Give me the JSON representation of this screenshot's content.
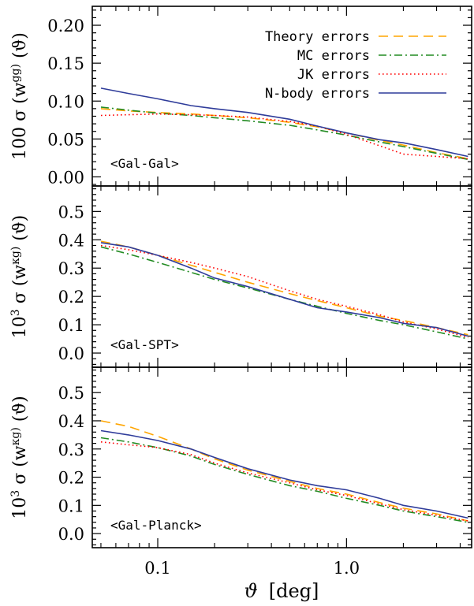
{
  "figure": {
    "xlabel_symbol": "ϑ",
    "xlabel_unit": "[deg]",
    "xlim": [
      0.045,
      4.6
    ],
    "xscale": "log",
    "xticks": [
      {
        "value": 0.1,
        "label": "0.1"
      },
      {
        "value": 1.0,
        "label": "1.0"
      }
    ]
  },
  "legend": {
    "entries": [
      {
        "label": "Theory errors",
        "color": "#FFA500",
        "dash": "dashed"
      },
      {
        "label": "MC errors",
        "color": "#228B22",
        "dash": "dashdot"
      },
      {
        "label": "JK errors",
        "color": "#FF0000",
        "dash": "dotted"
      },
      {
        "label": "N-body errors",
        "color": "#2F3C9A",
        "dash": "solid"
      }
    ]
  },
  "chart_data": [
    {
      "type": "line",
      "panel": "top",
      "annotation": "<Gal-Gal>",
      "ylabel": "100 σ (w^gg) (ϑ)",
      "ylim": [
        -0.012,
        0.225
      ],
      "yscale": "linear",
      "yticks": [
        {
          "value": 0.0,
          "label": "0.00"
        },
        {
          "value": 0.05,
          "label": "0.05"
        },
        {
          "value": 0.1,
          "label": "0.10"
        },
        {
          "value": 0.15,
          "label": "0.15"
        },
        {
          "value": 0.2,
          "label": "0.20"
        }
      ],
      "series": [
        {
          "name": "Theory errors",
          "x": [
            0.05,
            0.07,
            0.1,
            0.15,
            0.2,
            0.3,
            0.5,
            0.7,
            1.0,
            1.5,
            2.0,
            3.0,
            4.4
          ],
          "y": [
            0.09,
            0.087,
            0.085,
            0.083,
            0.081,
            0.078,
            0.072,
            0.066,
            0.058,
            0.048,
            0.042,
            0.032,
            0.024
          ]
        },
        {
          "name": "MC errors",
          "x": [
            0.05,
            0.07,
            0.1,
            0.15,
            0.2,
            0.3,
            0.5,
            0.7,
            1.0,
            1.5,
            2.0,
            3.0,
            4.4
          ],
          "y": [
            0.092,
            0.088,
            0.084,
            0.081,
            0.078,
            0.074,
            0.068,
            0.062,
            0.055,
            0.046,
            0.04,
            0.031,
            0.023
          ]
        },
        {
          "name": "JK errors",
          "x": [
            0.05,
            0.07,
            0.1,
            0.15,
            0.2,
            0.3,
            0.5,
            0.7,
            1.0,
            1.5,
            2.0,
            3.0,
            4.4
          ],
          "y": [
            0.081,
            0.082,
            0.083,
            0.082,
            0.081,
            0.079,
            0.073,
            0.067,
            0.056,
            0.041,
            0.03,
            0.027,
            0.024
          ]
        },
        {
          "name": "N-body errors",
          "x": [
            0.05,
            0.07,
            0.1,
            0.15,
            0.2,
            0.3,
            0.5,
            0.7,
            1.0,
            1.5,
            2.0,
            3.0,
            4.4
          ],
          "y": [
            0.117,
            0.11,
            0.103,
            0.094,
            0.09,
            0.085,
            0.076,
            0.067,
            0.058,
            0.049,
            0.045,
            0.036,
            0.027
          ]
        }
      ]
    },
    {
      "type": "line",
      "panel": "middle",
      "annotation": "<Gal-SPT>",
      "ylabel": "10^3 σ (w^κg) (ϑ)",
      "ylim": [
        -0.05,
        0.59
      ],
      "yscale": "linear",
      "yticks": [
        {
          "value": 0.0,
          "label": "0.0"
        },
        {
          "value": 0.1,
          "label": "0.1"
        },
        {
          "value": 0.2,
          "label": "0.2"
        },
        {
          "value": 0.3,
          "label": "0.3"
        },
        {
          "value": 0.4,
          "label": "0.4"
        },
        {
          "value": 0.5,
          "label": "0.5"
        }
      ],
      "series": [
        {
          "name": "Theory errors",
          "x": [
            0.05,
            0.07,
            0.1,
            0.15,
            0.2,
            0.3,
            0.5,
            0.7,
            1.0,
            1.5,
            2.0,
            3.0,
            4.4
          ],
          "y": [
            0.395,
            0.375,
            0.345,
            0.31,
            0.285,
            0.25,
            0.21,
            0.185,
            0.16,
            0.13,
            0.115,
            0.09,
            0.065
          ]
        },
        {
          "name": "MC errors",
          "x": [
            0.05,
            0.07,
            0.1,
            0.15,
            0.2,
            0.3,
            0.5,
            0.7,
            1.0,
            1.5,
            2.0,
            3.0,
            4.4
          ],
          "y": [
            0.375,
            0.35,
            0.32,
            0.285,
            0.26,
            0.23,
            0.19,
            0.165,
            0.14,
            0.115,
            0.1,
            0.075,
            0.05
          ]
        },
        {
          "name": "JK errors",
          "x": [
            0.05,
            0.07,
            0.1,
            0.15,
            0.2,
            0.3,
            0.5,
            0.7,
            1.0,
            1.5,
            2.0,
            3.0,
            4.4
          ],
          "y": [
            0.38,
            0.365,
            0.345,
            0.32,
            0.3,
            0.27,
            0.22,
            0.19,
            0.165,
            0.135,
            0.11,
            0.085,
            0.055
          ]
        },
        {
          "name": "N-body errors",
          "x": [
            0.05,
            0.07,
            0.1,
            0.15,
            0.2,
            0.3,
            0.5,
            0.7,
            1.0,
            1.5,
            2.0,
            3.0,
            4.4
          ],
          "y": [
            0.39,
            0.375,
            0.345,
            0.3,
            0.265,
            0.235,
            0.19,
            0.16,
            0.145,
            0.125,
            0.105,
            0.09,
            0.06
          ]
        }
      ]
    },
    {
      "type": "line",
      "panel": "bottom",
      "annotation": "<Gal-Planck>",
      "ylabel": "10^3 σ (w^κg) (ϑ)",
      "ylim": [
        -0.05,
        0.59
      ],
      "yscale": "linear",
      "yticks": [
        {
          "value": 0.0,
          "label": "0.0"
        },
        {
          "value": 0.1,
          "label": "0.1"
        },
        {
          "value": 0.2,
          "label": "0.2"
        },
        {
          "value": 0.3,
          "label": "0.3"
        },
        {
          "value": 0.4,
          "label": "0.4"
        },
        {
          "value": 0.5,
          "label": "0.5"
        }
      ],
      "series": [
        {
          "name": "Theory errors",
          "x": [
            0.05,
            0.07,
            0.1,
            0.15,
            0.2,
            0.3,
            0.5,
            0.7,
            1.0,
            1.5,
            2.0,
            3.0,
            4.4
          ],
          "y": [
            0.4,
            0.38,
            0.345,
            0.3,
            0.265,
            0.225,
            0.185,
            0.16,
            0.14,
            0.11,
            0.09,
            0.07,
            0.045
          ]
        },
        {
          "name": "MC errors",
          "x": [
            0.05,
            0.07,
            0.1,
            0.15,
            0.2,
            0.3,
            0.5,
            0.7,
            1.0,
            1.5,
            2.0,
            3.0,
            4.4
          ],
          "y": [
            0.34,
            0.325,
            0.305,
            0.275,
            0.245,
            0.21,
            0.17,
            0.15,
            0.125,
            0.1,
            0.08,
            0.06,
            0.04
          ]
        },
        {
          "name": "JK errors",
          "x": [
            0.05,
            0.07,
            0.1,
            0.15,
            0.2,
            0.3,
            0.5,
            0.7,
            1.0,
            1.5,
            2.0,
            3.0,
            4.4
          ],
          "y": [
            0.325,
            0.315,
            0.305,
            0.28,
            0.25,
            0.215,
            0.18,
            0.155,
            0.135,
            0.105,
            0.085,
            0.065,
            0.045
          ]
        },
        {
          "name": "N-body errors",
          "x": [
            0.05,
            0.07,
            0.1,
            0.15,
            0.2,
            0.3,
            0.5,
            0.7,
            1.0,
            1.5,
            2.0,
            3.0,
            4.4
          ],
          "y": [
            0.365,
            0.35,
            0.33,
            0.3,
            0.27,
            0.23,
            0.19,
            0.17,
            0.155,
            0.125,
            0.1,
            0.08,
            0.055
          ]
        }
      ]
    }
  ]
}
